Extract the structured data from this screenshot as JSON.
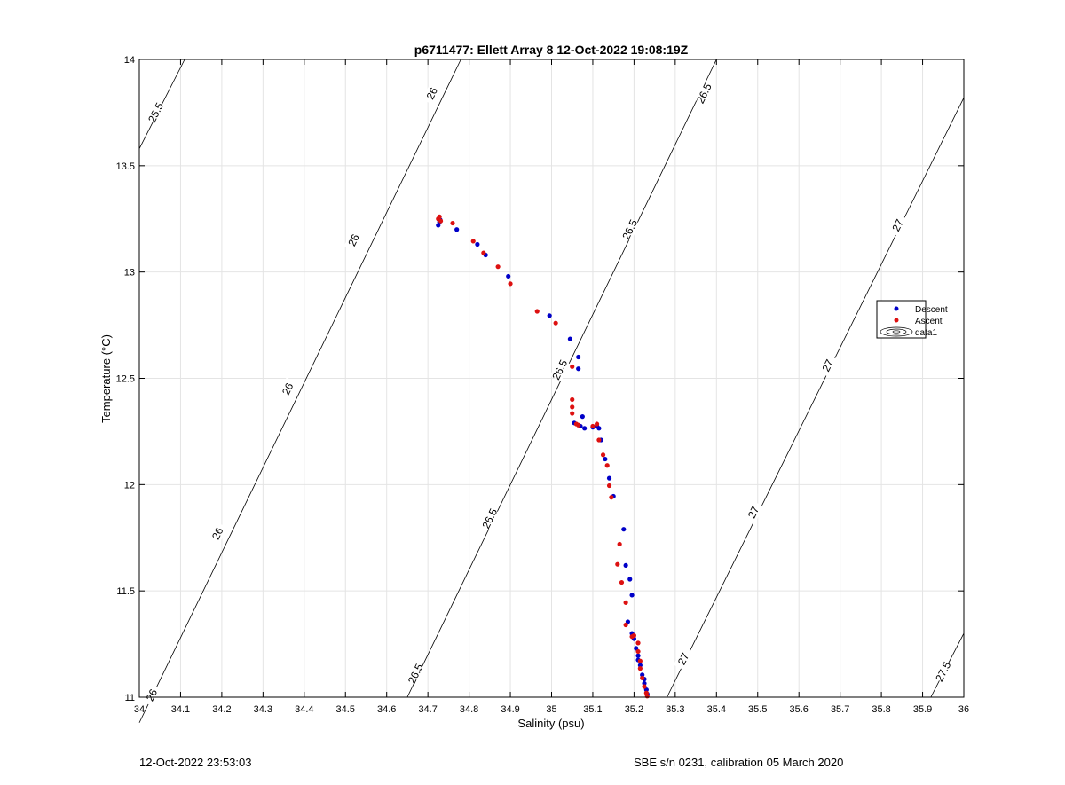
{
  "footer": {
    "left": "12-Oct-2022 23:53:03",
    "right": "SBE s/n 0231, calibration 05 March 2020"
  },
  "chart_data": {
    "type": "scatter",
    "title": "p6711477: Ellett Array 8 12-Oct-2022 19:08:19Z",
    "xlabel": "Salinity (psu)",
    "ylabel": "Temperature (°C)",
    "xlim": [
      34,
      36
    ],
    "ylim": [
      11,
      14
    ],
    "xticks": [
      "34",
      "34.1",
      "34.2",
      "34.3",
      "34.4",
      "34.5",
      "34.6",
      "34.7",
      "34.8",
      "34.9",
      "35",
      "35.1",
      "35.2",
      "35.3",
      "35.4",
      "35.5",
      "35.6",
      "35.7",
      "35.8",
      "35.9",
      "36"
    ],
    "yticks": [
      "11",
      "11.5",
      "12",
      "12.5",
      "13",
      "13.5",
      "14"
    ],
    "grid": true,
    "legend_position": "right",
    "colors": {
      "descent": "#0000c8",
      "ascent": "#dd1111"
    },
    "legend": [
      {
        "label": "Descent",
        "marker": "dot",
        "color": "#0000c8"
      },
      {
        "label": "Ascent",
        "marker": "dot",
        "color": "#dd1111"
      },
      {
        "label": "data1",
        "marker": "contour",
        "color": "#000000"
      }
    ],
    "contours": [
      {
        "label": "25.5",
        "points": [
          [
            34.0,
            13.58
          ],
          [
            34.11,
            14.0
          ]
        ],
        "label_at": [
          [
            34.04,
            13.75
          ]
        ]
      },
      {
        "label": "26",
        "points": [
          [
            34.0,
            10.88
          ],
          [
            34.78,
            14.0
          ]
        ],
        "label_at": [
          [
            34.03,
            11.01
          ],
          [
            34.19,
            11.77
          ],
          [
            34.36,
            12.45
          ],
          [
            34.52,
            13.15
          ],
          [
            34.71,
            13.84
          ]
        ]
      },
      {
        "label": "26.5",
        "points": [
          [
            34.65,
            11.0
          ],
          [
            35.4,
            14.0
          ]
        ],
        "label_at": [
          [
            34.67,
            11.11
          ],
          [
            34.85,
            11.84
          ],
          [
            35.02,
            12.54
          ],
          [
            35.19,
            13.2
          ],
          [
            35.37,
            13.84
          ]
        ]
      },
      {
        "label": "27",
        "points": [
          [
            35.28,
            11.0
          ],
          [
            36.0,
            13.82
          ]
        ],
        "label_at": [
          [
            35.32,
            11.18
          ],
          [
            35.49,
            11.87
          ],
          [
            35.67,
            12.56
          ],
          [
            35.84,
            13.22
          ]
        ]
      },
      {
        "label": "27.5",
        "points": [
          [
            35.92,
            11.0
          ],
          [
            36.0,
            11.3
          ]
        ],
        "label_at": [
          [
            35.95,
            11.12
          ]
        ]
      }
    ],
    "series": [
      {
        "name": "Descent",
        "points": [
          [
            34.725,
            13.22
          ],
          [
            34.728,
            13.235
          ],
          [
            34.73,
            13.245
          ],
          [
            34.77,
            13.2
          ],
          [
            34.82,
            13.13
          ],
          [
            34.84,
            13.08
          ],
          [
            34.895,
            12.98
          ],
          [
            34.995,
            12.795
          ],
          [
            35.045,
            12.685
          ],
          [
            35.065,
            12.6
          ],
          [
            35.065,
            12.545
          ],
          [
            35.055,
            12.29
          ],
          [
            35.07,
            12.275
          ],
          [
            35.075,
            12.32
          ],
          [
            35.08,
            12.265
          ],
          [
            35.1,
            12.27
          ],
          [
            35.11,
            12.275
          ],
          [
            35.115,
            12.265
          ],
          [
            35.12,
            12.21
          ],
          [
            35.13,
            12.12
          ],
          [
            35.14,
            12.03
          ],
          [
            35.15,
            11.945
          ],
          [
            35.175,
            11.79
          ],
          [
            35.18,
            11.62
          ],
          [
            35.19,
            11.555
          ],
          [
            35.195,
            11.48
          ],
          [
            35.185,
            11.355
          ],
          [
            35.195,
            11.3
          ],
          [
            35.2,
            11.275
          ],
          [
            35.205,
            11.23
          ],
          [
            35.21,
            11.195
          ],
          [
            35.21,
            11.175
          ],
          [
            35.215,
            11.15
          ],
          [
            35.22,
            11.105
          ],
          [
            35.225,
            11.085
          ],
          [
            35.225,
            11.065
          ],
          [
            35.23,
            11.035
          ],
          [
            35.232,
            11.015
          ]
        ]
      },
      {
        "name": "Ascent",
        "points": [
          [
            34.725,
            13.25
          ],
          [
            34.728,
            13.26
          ],
          [
            34.731,
            13.24
          ],
          [
            34.76,
            13.23
          ],
          [
            34.81,
            13.145
          ],
          [
            34.835,
            13.09
          ],
          [
            34.87,
            13.025
          ],
          [
            34.9,
            12.945
          ],
          [
            34.965,
            12.815
          ],
          [
            35.01,
            12.76
          ],
          [
            35.05,
            12.555
          ],
          [
            35.05,
            12.4
          ],
          [
            35.05,
            12.365
          ],
          [
            35.05,
            12.335
          ],
          [
            35.06,
            12.285
          ],
          [
            35.065,
            12.28
          ],
          [
            35.1,
            12.275
          ],
          [
            35.11,
            12.285
          ],
          [
            35.115,
            12.21
          ],
          [
            35.125,
            12.14
          ],
          [
            35.135,
            12.09
          ],
          [
            35.14,
            11.995
          ],
          [
            35.145,
            11.94
          ],
          [
            35.165,
            11.72
          ],
          [
            35.16,
            11.625
          ],
          [
            35.17,
            11.54
          ],
          [
            35.18,
            11.445
          ],
          [
            35.18,
            11.34
          ],
          [
            35.195,
            11.285
          ],
          [
            35.2,
            11.29
          ],
          [
            35.21,
            11.255
          ],
          [
            35.21,
            11.215
          ],
          [
            35.215,
            11.17
          ],
          [
            35.215,
            11.135
          ],
          [
            35.22,
            11.09
          ],
          [
            35.225,
            11.05
          ],
          [
            35.23,
            11.02
          ],
          [
            35.232,
            11.005
          ]
        ]
      }
    ]
  }
}
